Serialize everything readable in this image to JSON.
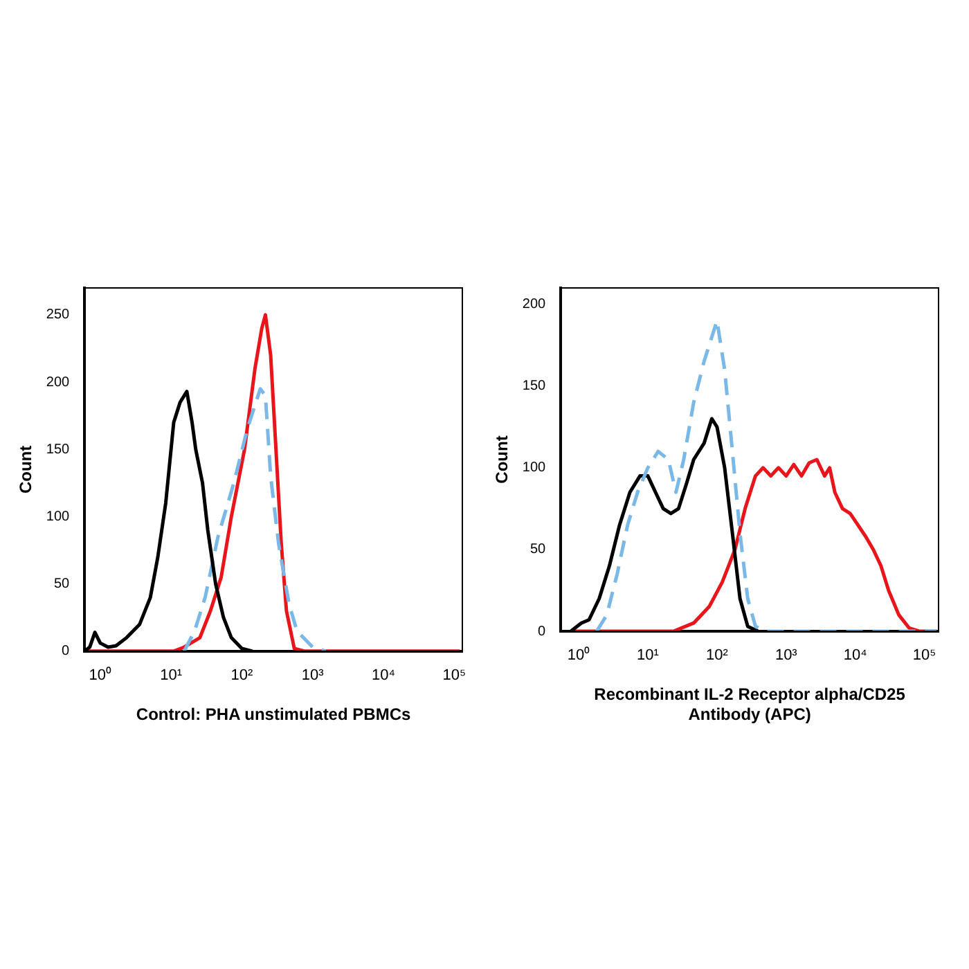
{
  "chart_data": [
    {
      "type": "line",
      "xlabel": "Control: PHA unstimulated PBMCs",
      "ylabel": "Count",
      "log": "x",
      "xlim": [
        0.6,
        130000
      ],
      "ylim": [
        0,
        270
      ],
      "xticks": [
        {
          "value": 1,
          "label": "10⁰"
        },
        {
          "value": 10,
          "label": "10¹"
        },
        {
          "value": 100,
          "label": "10²"
        },
        {
          "value": 1000,
          "label": "10³"
        },
        {
          "value": 10000,
          "label": "10⁴"
        },
        {
          "value": 100000,
          "label": "10⁵"
        }
      ],
      "yticks": [
        0,
        50,
        100,
        150,
        200,
        250
      ],
      "grid": false,
      "legend": false,
      "marker": "none",
      "series": [
        {
          "color": "#000000",
          "line_style": "solid",
          "x": [
            0.6,
            0.71,
            0.84,
            1,
            1.29,
            1.67,
            2.35,
            3.6,
            5.1,
            6.5,
            8.4,
            10.9,
            13.4,
            16.7,
            19.8,
            22.3,
            27.8,
            33,
            42.6,
            55,
            71,
            100,
            141
          ],
          "values": [
            0,
            3,
            14,
            6,
            3,
            4,
            10,
            20,
            40,
            70,
            110,
            170,
            185,
            193,
            170,
            150,
            125,
            90,
            50,
            25,
            10,
            2,
            0
          ]
        },
        {
          "color": "#7ab8e8",
          "line_style": "dashed",
          "x": [
            15.3,
            21.5,
            30.3,
            46,
            77,
            119,
            182,
            215,
            255,
            330,
            464,
            600,
            1000,
            1530
          ],
          "values": [
            0,
            15,
            40,
            85,
            125,
            165,
            195,
            190,
            130,
            80,
            35,
            15,
            3,
            0
          ]
        },
        {
          "color": "#e8151b",
          "line_style": "solid",
          "x": [
            0.6,
            10.9,
            15.3,
            25.5,
            36,
            51,
            71,
            109,
            153,
            191,
            215,
            255,
            303,
            360,
            426,
            550,
            776,
            120000
          ],
          "values": [
            0,
            0,
            3,
            10,
            30,
            55,
            100,
            150,
            210,
            240,
            250,
            220,
            150,
            80,
            30,
            2,
            0,
            0
          ]
        }
      ]
    },
    {
      "type": "line",
      "xlabel": "Recombinant IL-2 Receptor alpha/CD25 Antibody (APC)",
      "ylabel": "Count",
      "log": "x",
      "xlim": [
        0.55,
        160000
      ],
      "ylim": [
        0,
        210
      ],
      "xticks": [
        {
          "value": 1,
          "label": "10⁰"
        },
        {
          "value": 10,
          "label": "10¹"
        },
        {
          "value": 100,
          "label": "10²"
        },
        {
          "value": 1000,
          "label": "10³"
        },
        {
          "value": 10000,
          "label": "10⁴"
        },
        {
          "value": 100000,
          "label": "10⁵"
        }
      ],
      "yticks": [
        0,
        50,
        100,
        150,
        200
      ],
      "grid": false,
      "legend": false,
      "marker": "none",
      "series": [
        {
          "color": "#7ab8e8",
          "line_style": "dashed",
          "x": [
            1.82,
            2.55,
            3.6,
            5.1,
            7.1,
            10,
            14.1,
            19.8,
            25.5,
            33,
            46,
            65,
            100,
            129,
            167,
            215,
            278,
            360,
            506,
            150000
          ],
          "values": [
            0,
            10,
            35,
            65,
            85,
            100,
            110,
            105,
            85,
            105,
            140,
            165,
            190,
            160,
            110,
            60,
            20,
            3,
            0,
            0
          ]
        },
        {
          "color": "#000000",
          "line_style": "solid",
          "x": [
            0.77,
            1.09,
            1.41,
            1.98,
            2.78,
            3.9,
            5.5,
            7.7,
            10,
            12.9,
            16.7,
            21.5,
            27.8,
            36,
            46,
            65,
            84,
            100,
            129,
            167,
            215,
            278,
            392
          ],
          "values": [
            0,
            5,
            7,
            20,
            40,
            65,
            85,
            95,
            95,
            85,
            75,
            72,
            75,
            90,
            105,
            115,
            130,
            125,
            100,
            60,
            20,
            3,
            0
          ]
        },
        {
          "color": "#e8151b",
          "line_style": "solid",
          "x": [
            0.77,
            23.5,
            46,
            77,
            119,
            182,
            255,
            360,
            464,
            600,
            774,
            1000,
            1290,
            1670,
            2150,
            2780,
            3600,
            4260,
            5060,
            6530,
            8430,
            10900,
            14100,
            18200,
            23500,
            30300,
            42600,
            60000,
            84300,
            150000
          ],
          "values": [
            0,
            0,
            5,
            15,
            30,
            50,
            75,
            95,
            100,
            95,
            100,
            95,
            102,
            95,
            103,
            105,
            95,
            100,
            85,
            75,
            72,
            65,
            58,
            50,
            40,
            25,
            10,
            2,
            0,
            0
          ]
        }
      ]
    }
  ]
}
